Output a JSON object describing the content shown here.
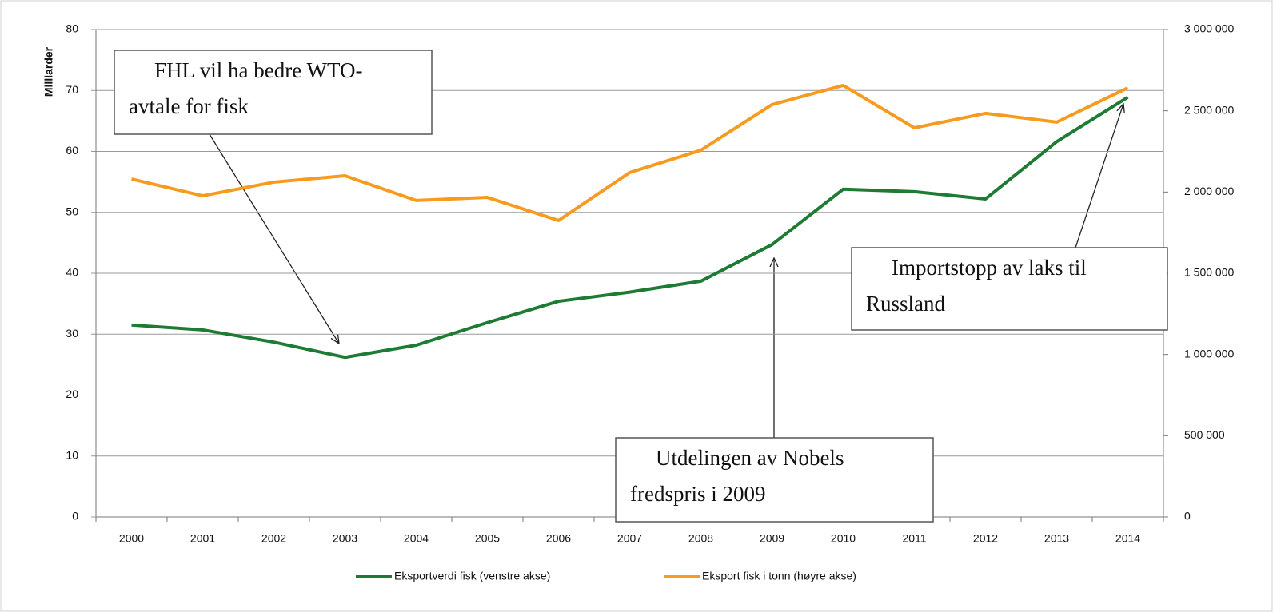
{
  "chart_data": {
    "type": "line",
    "y_label": "Milliarder",
    "categories": [
      "2000",
      "2001",
      "2002",
      "2003",
      "2004",
      "2005",
      "2006",
      "2007",
      "2008",
      "2009",
      "2010",
      "2011",
      "2012",
      "2013",
      "2014"
    ],
    "series": [
      {
        "name": "Eksportverdi fisk (venstre akse)",
        "color": "#1e7b34",
        "axis": "y",
        "values": [
          31.5,
          30.7,
          28.7,
          26.2,
          28.2,
          31.9,
          35.4,
          36.9,
          38.7,
          44.7,
          53.8,
          53.4,
          52.2,
          61.6,
          68.9
        ]
      },
      {
        "name": "Eksport fisk i tonn (høyre akse)",
        "color": "#f79b1e",
        "axis": "y2",
        "values": [
          2080000,
          1977000,
          2061000,
          2100000,
          1948000,
          1967000,
          1825000,
          2120000,
          2257000,
          2538000,
          2656000,
          2395000,
          2484000,
          2430000,
          2641000
        ]
      }
    ],
    "ylim": [
      0,
      80
    ],
    "yticks": [
      0,
      10,
      20,
      30,
      40,
      50,
      60,
      70,
      80
    ],
    "y2lim": [
      0,
      3000000
    ],
    "y2ticks": [
      0,
      {
        "value": 500000,
        "label": "500 000"
      },
      {
        "value": 1000000,
        "label": "1 000 000"
      },
      {
        "value": 1500000,
        "label": "1 500 000"
      },
      {
        "value": 2000000,
        "label": "2 000 000"
      },
      {
        "value": 2500000,
        "label": "2 500 000"
      },
      {
        "value": 3000000,
        "label": "3 000 000"
      }
    ],
    "grid": true,
    "legend": "bottom",
    "annotations": [
      {
        "lines": [
          "FHL vil ha bedre WTO-",
          "avtale for fisk"
        ]
      },
      {
        "lines": [
          "Utdelingen av Nobels",
          "fredspris i 2009"
        ]
      },
      {
        "lines": [
          "Importstopp av laks til",
          "Russland"
        ]
      }
    ]
  }
}
